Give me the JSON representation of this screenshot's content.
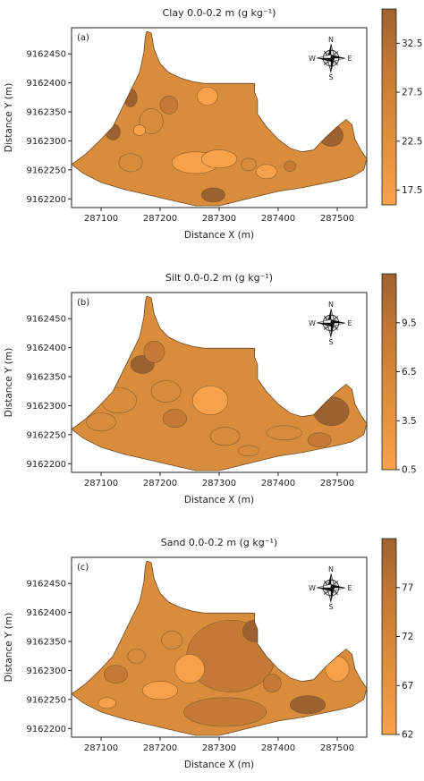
{
  "colors": {
    "low": "#f7a24a",
    "mid": "#d98d3c",
    "midhigh": "#c47a35",
    "high": "#9c6130",
    "frame": "#222222",
    "outline": "#6b4a22"
  },
  "chart_data": [
    {
      "type": "heatmap",
      "panel": "(a)",
      "title": "Clay 0.0-0.2 m (g kg⁻¹)",
      "xlabel": "Distance X (m)",
      "ylabel": "Distance Y (m)",
      "x_ticks": [
        287100,
        287200,
        287300,
        287400,
        287500
      ],
      "y_ticks": [
        9162200,
        9162250,
        9162300,
        9162350,
        9162400,
        9162450
      ],
      "xlim": [
        287050,
        287550
      ],
      "ylim": [
        9162185,
        9162495
      ],
      "colorbar": {
        "ticks": [
          17.5,
          22.5,
          27.5,
          32.5
        ],
        "range": [
          16,
          36
        ]
      },
      "compass": {
        "north": "N",
        "south": "S",
        "east": "E",
        "west": "W"
      }
    },
    {
      "type": "heatmap",
      "panel": "(b)",
      "title": "Silt 0.0-0.2 m (g kg⁻¹)",
      "xlabel": "Distance X (m)",
      "ylabel": "Distance Y (m)",
      "x_ticks": [
        287100,
        287200,
        287300,
        287400,
        287500
      ],
      "y_ticks": [
        9162200,
        9162250,
        9162300,
        9162350,
        9162400,
        9162450
      ],
      "xlim": [
        287050,
        287550
      ],
      "ylim": [
        9162185,
        9162495
      ],
      "colorbar": {
        "ticks": [
          0.5,
          3.5,
          6.5,
          9.5
        ],
        "range": [
          0.5,
          12.5
        ]
      },
      "compass": {
        "north": "N",
        "south": "S",
        "east": "E",
        "west": "W"
      }
    },
    {
      "type": "heatmap",
      "panel": "(c)",
      "title": "Sand 0.0-0.2 m (g kg⁻¹)",
      "xlabel": "Distance X (m)",
      "ylabel": "Distance Y (m)",
      "x_ticks": [
        287100,
        287200,
        287300,
        287400,
        287500
      ],
      "y_ticks": [
        9162200,
        9162250,
        9162300,
        9162350,
        9162400,
        9162450
      ],
      "xlim": [
        287050,
        287550
      ],
      "ylim": [
        9162185,
        9162495
      ],
      "colorbar": {
        "ticks": [
          62,
          67,
          72,
          77
        ],
        "range": [
          62,
          82
        ]
      },
      "compass": {
        "north": "N",
        "south": "S",
        "east": "E",
        "west": "W"
      }
    }
  ]
}
